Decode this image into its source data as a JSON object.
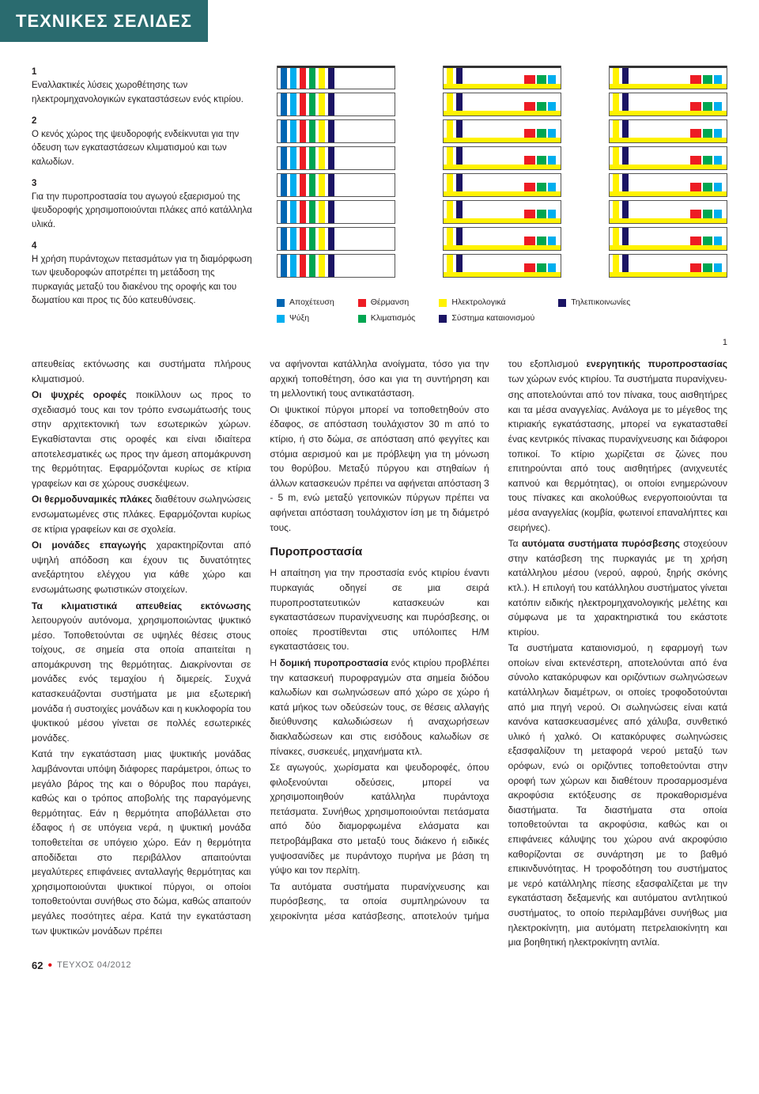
{
  "header": {
    "title": "ΤΕΧΝΙΚΕΣ ΣΕΛΙΔΕΣ"
  },
  "captions": [
    {
      "n": "1",
      "text": "Εναλλακτικές λύσεις χωροθέτησης των ηλεκτρομηχανολογικών εγκαταστάσεων ενός κτιρίου."
    },
    {
      "n": "2",
      "text": "Ο κενός χώρος της ψευδοροφής ενδείκνυται για την όδευση των εγκαταστάσεων κλιματισμού και των καλωδίων."
    },
    {
      "n": "3",
      "text": "Για την πυροπροστασία του αγωγού εξαερισμού της ψευδοροφής χρησιμοποιούνται πλάκες από κατάλληλα υλικά."
    },
    {
      "n": "4",
      "text": "Η χρήση πυράντοχων πετασμάτων για τη διαμόρφωση των ψευδοροφών αποτρέπει τη μετάδοση της πυρκαγιάς μεταξύ του διακένου της οροφής και του δωματίου και προς τις δύο κατευθύνσεις."
    }
  ],
  "colors": {
    "blue": "#0066b3",
    "cyan": "#00aeef",
    "red": "#ed1c24",
    "green": "#00a651",
    "yellow": "#fff200",
    "darkblue": "#1b1464",
    "border": "#555555",
    "bg": "#ffffff"
  },
  "diagram": {
    "floors_per_building": 8,
    "building_a": {
      "verticals": [
        "blue",
        "cyan",
        "red",
        "green",
        "yellow",
        "darkblue"
      ],
      "horizontal_color": null
    },
    "building_b": {
      "verticals": [
        "yellow",
        "darkblue"
      ],
      "right_blocks": [
        "red",
        "green",
        "cyan"
      ],
      "horizontal_color": "yellow"
    },
    "building_c": {
      "verticals": [
        "yellow",
        "darkblue"
      ],
      "right_blocks": [
        "red",
        "green",
        "cyan"
      ],
      "horizontal_color": "yellow"
    }
  },
  "legend": [
    [
      {
        "color": "blue",
        "label": "Αποχέτευση"
      },
      {
        "color": "cyan",
        "label": "Ψύξη"
      }
    ],
    [
      {
        "color": "red",
        "label": "Θέρμανση"
      },
      {
        "color": "green",
        "label": "Κλιματισμός"
      }
    ],
    [
      {
        "color": "yellow",
        "label": "Ηλεκτρολογικά"
      },
      {
        "color": "darkblue",
        "label": "Σύστημα καταιονισμού"
      }
    ],
    [
      {
        "color": "darkblue",
        "label": "Τηλεπικοινωνίες"
      }
    ]
  ],
  "figure_number": "1",
  "body": {
    "col1": [
      "απευθείας εκτόνωσης και συστήματα πλήρους κλιματισμού.",
      "<b>Οι ψυχρές οροφές</b> ποικίλλουν ως προς το σχεδιασμό τους και τον τρόπο ενσωμάτωσής τους στην αρχιτεκτονική των εσωτερικών χώρων. Εγκαθίστανται στις οροφές και είναι ιδιαίτερα αποτελεσματικές ως προς την άμεση απομάκρυνση της θερμότητας. Εφαρμόζονται κυρίως σε κτίρια γραφείων και σε χώρους συσκέψεων.",
      "<b>Οι θερμοδυναμικές πλάκες</b> διαθέτουν σωληνώσεις ενσωματωμένες στις πλάκες. Εφαρμόζονται κυρίως σε κτίρια γραφείων και σε σχολεία.",
      "<b>Οι μονάδες επαγωγής</b> χαρακτηρίζονται από υψηλή απόδοση και έχουν τις δυνατότητες ανεξάρτητου ελέγχου για κάθε χώρο και ενσωμάτωσης φωτιστικών στοιχείων.",
      "<b>Τα κλιματιστικά απευθείας εκτόνωσης</b> λειτουργούν αυτόνομα, χρησιμοποιώντας ψυκτικό μέσο. Τοποθετούνται σε υψηλές θέσεις στους τοίχους, σε σημεία στα οποία απαιτείται η απομάκρυνση της θερμότητας. Διακρίνονται σε μονάδες ενός τεμαχίου ή διμερείς. Συχνά κατασκευάζονται συστήματα με μια εξωτερική μονάδα ή συστοιχίες μονάδων και η κυκλοφορία του ψυκτικού μέσου γίνεται σε πολλές εσωτερικές μονάδες.",
      "Κατά την εγκατάσταση μιας ψυκτικής μονάδας λαμβάνονται υπόψη διάφορες παράμετροι, όπως το μεγάλο βάρος της και ο θόρυβος που παράγει, καθώς και ο τρόπος αποβολής της παραγόμενης θερμότητας. Εάν η θερμότητα αποβάλλεται στο έδαφος ή σε υπόγεια νερά, η ψυκτική μονάδα τοποθετείται σε υπόγειο χώρο. Εάν η θερμότητα αποδίδεται στο περιβάλλον απαιτούνται μεγαλύτερες επιφάνειες ανταλλαγής θερμότητας και χρησιμοποιούνται ψυκτικοί πύργοι, οι οποίοι τοποθετούνται συνήθως στο δώμα, καθώς απαιτούν μεγάλες ποσότητες αέρα. Κατά την εγκατάσταση των ψυκτικών μονάδων πρέπει"
    ],
    "col2": [
      "να αφήνονται κατάλληλα ανοίγματα, τόσο για την αρχική τοποθέτηση, όσο και για τη συντήρηση και τη μελλοντική τους αντικατάσταση.",
      "Οι ψυκτικοί πύργοι μπορεί να τοποθετηθούν στο έδαφος, σε απόσταση τουλάχιστον 30 m από το κτίριο, ή στο δώμα, σε απόσταση από φεγγίτες και στόμια αερισμού και με πρόβλεψη για τη μόνωση του θορύβου. Μεταξύ πύργου και στηθαίων ή άλλων κατασκευών πρέπει να αφήνεται απόσταση 3 - 5 m, ενώ μεταξύ γειτονικών πύργων πρέπει να αφήνεται απόσταση τουλάχιστον ίση με τη διάμετρό τους."
    ],
    "section2_title": "Πυροπροστασία",
    "col2b": [
      "Η απαίτηση για την προστασία ενός κτιρίου έναντι πυρκαγιάς οδηγεί σε μια σειρά πυροπροστατευτικών κατασκευών και εγκαταστάσεων πυρανίχνευσης και πυρόσβεσης, οι οποίες προστίθενται στις υπόλοιπες Η/Μ  εγκαταστάσεις του.",
      "Η <b>δομική πυροπροστασία</b> ενός κτιρίου προβλέπει την κατασκευή πυροφραγμών στα σημεία διόδου καλωδίων και σωληνώσεων από χώρο σε χώρο ή κατά μήκος των οδεύσεών τους, σε θέσεις αλλαγής διεύθυνσης καλωδιώσεων ή αναχωρήσεων διακλαδώσεων και στις εισόδους καλωδίων σε πίνακες, συσκευές, μηχανήματα κτλ.",
      "Σε αγωγούς, χωρίσματα και ψευδοροφές, όπου φιλοξενούνται οδεύσεις, μπορεί να χρησιμοποιηθούν κατάλληλα πυράντοχα πετάσματα. Συνήθως χρησιμοποιούνται πετάσματα από δύο διαμορφωμένα ελάσματα και πετροβάμβακα στο μεταξύ τους διάκενο ή ειδικές γυψοσανίδες με πυράντοχο πυρήνα με βάση τη γύψο και τον περλίτη.",
      "Τα αυτόματα συστήματα πυρανίχνευσης και πυρόσβεσης, τα οποία συμπληρώνουν τα χειροκίνητα μέσα κατάσβεσης, αποτελούν τμήμα του εξοπλισμού <b>ενεργητικής πυροπροστασίας</b> των χώρων ενός κτιρίου. Τα συστήματα πυρανίχνευ-"
    ],
    "col3": [
      "σης αποτελούνται από τον πίνακα, τους αισθητήρες και τα μέσα αναγγελίας. Ανάλογα με το μέγεθος της κτιριακής εγκατάστασης, μπορεί να εγκατασταθεί ένας κεντρικός πίνακας πυρανίχνευσης και διάφοροι τοπικοί. Το κτίριο χωρίζεται σε ζώνες που επιτηρούνται από τους αισθητήρες (ανιχνευτές καπνού και θερμότητας), οι οποίοι ενημερώνουν τους πίνακες και ακολούθως ενεργοποιούνται τα μέσα αναγγελίας (κομβία, φωτεινοί επαναλήπτες και σειρήνες).",
      "Τα <b>αυτόματα συστήματα πυρόσβεσης</b> στοχεύουν στην κατάσβεση της πυρκαγιάς με τη χρήση κατάλληλου μέσου (νερού, αφρού, ξηρής σκόνης κτλ.). Η επιλογή του κατάλληλου συστήματος γίνεται κατόπιν ειδικής ηλεκτρομηχανολογικής μελέτης και σύμφωνα με τα χαρακτηριστικά του εκάστοτε κτιρίου.",
      "Τα συστήματα καταιονισμού, η εφαρμογή των οποίων είναι εκτενέστερη, αποτελούνται από ένα σύνολο κατακόρυφων και οριζόντιων σωληνώσεων κατάλληλων διαμέτρων, οι οποίες τροφοδοτούνται από μια πηγή νερού. Οι σωληνώσεις είναι κατά κανόνα κατασκευασμένες από χάλυβα, συνθετικό υλικό ή χαλκό. Οι κατακόρυφες σωληνώσεις εξασφαλίζουν τη μεταφορά νερού μεταξύ των ορόφων, ενώ οι οριζόντιες τοποθετούνται στην οροφή των χώρων και διαθέτουν προσαρμοσμένα ακροφύσια εκτόξευσης σε προκαθορισμένα διαστήματα. Τα διαστήματα στα οποία τοποθετούνται τα ακροφύσια, καθώς και οι επιφάνειες κάλυψης του χώρου ανά ακροφύσιο καθορίζονται σε συνάρτηση με το βαθμό επικινδυνότητας. Η τροφοδότηση του συστήματος με νερό κατάλληλης πίεσης εξασφαλίζεται με την εγκατάσταση δεξαμενής και αυτόματου αντλητικού συστήματος, το οποίο περιλαμβάνει συνήθως μια ηλεκτροκίνητη, μια αυτόματη πετρελαιοκίνητη και μια βοηθητική ηλεκτροκίνητη αντλία."
    ]
  },
  "footer": {
    "page": "62",
    "issue": "ΤΕΥΧΟΣ 04/2012"
  }
}
